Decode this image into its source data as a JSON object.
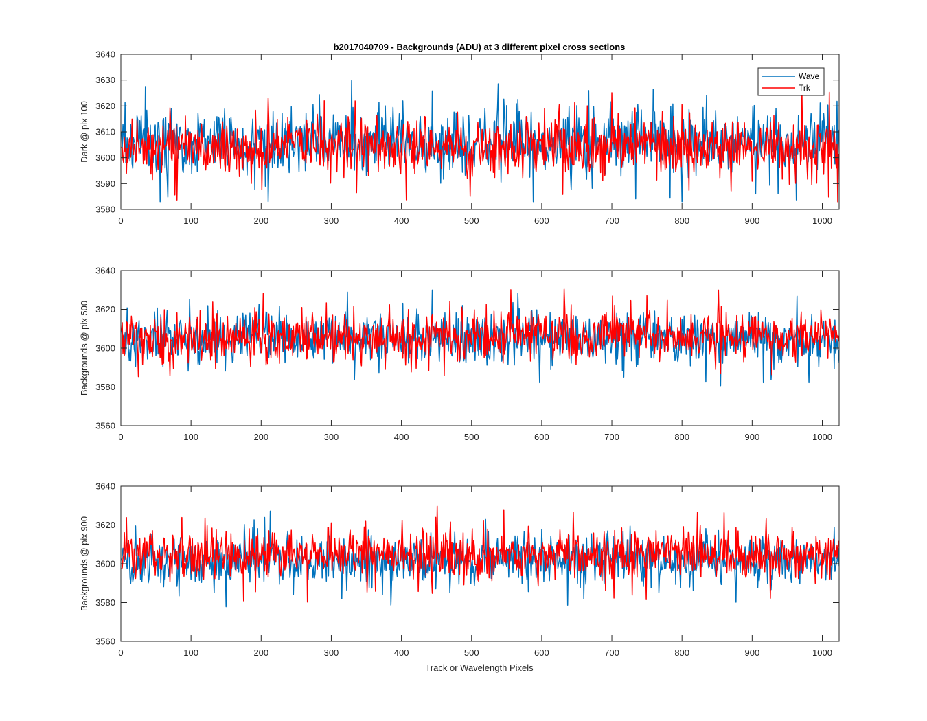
{
  "figure": {
    "title": "b2017040709 - Backgrounds (ADU) at 3 different pixel cross sections",
    "xlabel": "Track or Wavelength Pixels"
  },
  "legend": {
    "placement": "top-right of first subplot",
    "entries": [
      {
        "label": "Wave",
        "color": "#0072BD"
      },
      {
        "label": "Trk",
        "color": "#FF0000"
      }
    ]
  },
  "chart_data": [
    {
      "type": "line",
      "ylabel": "Dark @ pix 100",
      "xlim": [
        0,
        1024
      ],
      "ylim": [
        3580,
        3640
      ],
      "xticks": [
        0,
        100,
        200,
        300,
        400,
        500,
        600,
        700,
        800,
        900,
        1000
      ],
      "yticks": [
        3580,
        3590,
        3600,
        3610,
        3620,
        3630,
        3640
      ],
      "grid": false,
      "series": [
        {
          "name": "Wave",
          "color": "#0072BD",
          "n_points": 1024,
          "mean": 3606,
          "noise_sd": 7,
          "min": 3583,
          "max": 3631
        },
        {
          "name": "Trk",
          "color": "#FF0000",
          "n_points": 1024,
          "mean": 3604,
          "noise_sd": 6,
          "min": 3580,
          "max": 3631
        }
      ]
    },
    {
      "type": "line",
      "ylabel": "Backgrounds @ pix 500",
      "xlim": [
        0,
        1024
      ],
      "ylim": [
        3560,
        3640
      ],
      "xticks": [
        0,
        100,
        200,
        300,
        400,
        500,
        600,
        700,
        800,
        900,
        1000
      ],
      "yticks": [
        3560,
        3580,
        3600,
        3620,
        3640
      ],
      "grid": false,
      "series": [
        {
          "name": "Wave",
          "color": "#0072BD",
          "n_points": 1024,
          "mean": 3605,
          "noise_sd": 7,
          "min": 3576,
          "max": 3636
        },
        {
          "name": "Trk",
          "color": "#FF0000",
          "n_points": 1024,
          "mean": 3606,
          "noise_sd": 7,
          "min": 3582,
          "max": 3633
        }
      ]
    },
    {
      "type": "line",
      "ylabel": "Backgrounds @ pix 900",
      "xlim": [
        0,
        1024
      ],
      "ylim": [
        3560,
        3640
      ],
      "xticks": [
        0,
        100,
        200,
        300,
        400,
        500,
        600,
        700,
        800,
        900,
        1000
      ],
      "yticks": [
        3560,
        3580,
        3600,
        3620,
        3640
      ],
      "grid": false,
      "series": [
        {
          "name": "Wave",
          "color": "#0072BD",
          "n_points": 1024,
          "mean": 3602,
          "noise_sd": 7,
          "min": 3577,
          "max": 3632
        },
        {
          "name": "Trk",
          "color": "#FF0000",
          "n_points": 1024,
          "mean": 3605,
          "noise_sd": 7,
          "min": 3579,
          "max": 3630
        }
      ]
    }
  ]
}
